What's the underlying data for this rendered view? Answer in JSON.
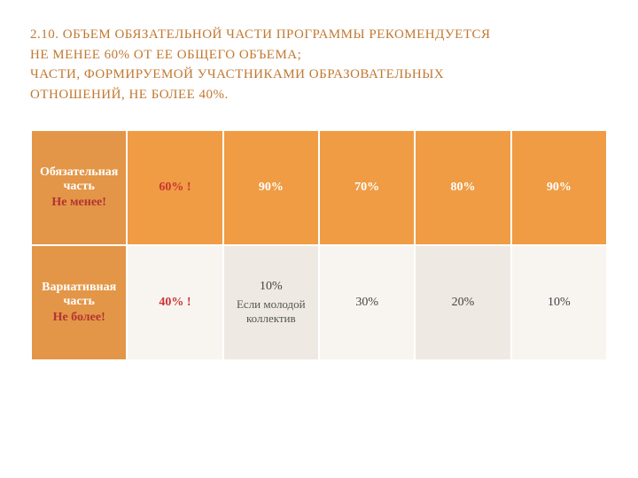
{
  "title": {
    "line1": "2.10. ОБЪЕМ ОБЯЗАТЕЛЬНОЙ ЧАСТИ ПРОГРАММЫ РЕКОМЕНДУЕТСЯ",
    "line2": "НЕ МЕНЕЕ 60% ОТ ЕЕ ОБЩЕГО ОБЪЕМА;",
    "line3": "ЧАСТИ, ФОРМИРУЕМОЙ УЧАСТНИКАМИ ОБРАЗОВАТЕЛЬНЫХ",
    "line4": "ОТНОШЕНИЙ, НЕ БОЛЕЕ 40%.",
    "color": "#c07830",
    "fontsize": 15
  },
  "table": {
    "type": "table",
    "header_bg": "#e39647",
    "header_text": "#ffffff",
    "row1_bg": "#ef9c44",
    "row1_text": "#ffffff",
    "row2_bg_a": "#f8f5f1",
    "row2_bg_b": "#eeeae3",
    "row2_text": "#444444",
    "highlight_color": "#cc3333",
    "border_color": "#ffffff",
    "columns": 6,
    "rows": [
      {
        "label_main": "Обязательная часть",
        "label_accent": "Не менее!",
        "cells": [
          {
            "text": "60% !",
            "highlight": true
          },
          {
            "text": "90%"
          },
          {
            "text": "70%"
          },
          {
            "text": "80%"
          },
          {
            "text": "90%"
          }
        ]
      },
      {
        "label_main": "Вариативная часть",
        "label_accent": "Не более!",
        "cells": [
          {
            "text": "40% !",
            "highlight": true
          },
          {
            "text": "10%",
            "sub": "Если молодой коллектив"
          },
          {
            "text": "30%"
          },
          {
            "text": "20%"
          },
          {
            "text": "10%"
          }
        ]
      }
    ]
  }
}
